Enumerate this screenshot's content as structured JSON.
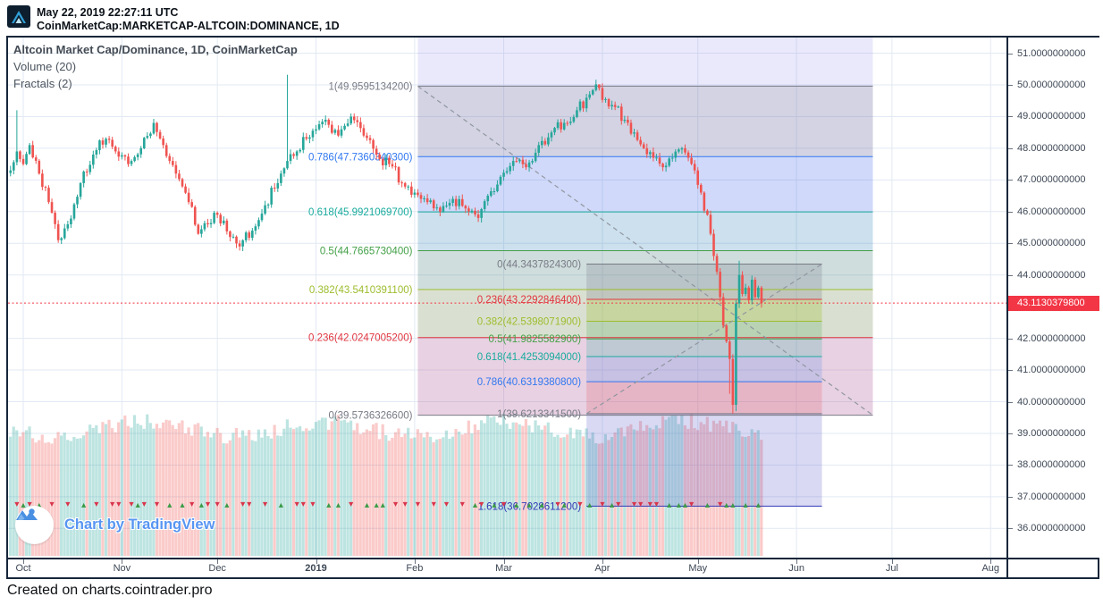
{
  "header": {
    "timestamp": "May 22, 2019 22:27:11 UTC",
    "symbol": "CoinMarketCap:MARKETCAP-ALTCOIN:DOMINANCE, 1D"
  },
  "legend": {
    "title": "Altcoin Market Cap/Dominance, 1D, CoinMarketCap",
    "volume": "Volume (20)",
    "fractals": "Fractals (2)"
  },
  "watermark": {
    "label": "Chart by TradingView"
  },
  "footer": {
    "credit": "Created on charts.cointrader.pro"
  },
  "price_axis": {
    "labels": [
      "51.0000000000",
      "50.0000000000",
      "49.0000000000",
      "48.0000000000",
      "47.0000000000",
      "46.0000000000",
      "45.0000000000",
      "44.0000000000",
      "42.0000000000",
      "41.0000000000",
      "40.0000000000",
      "39.0000000000",
      "38.0000000000",
      "37.0000000000",
      "36.0000000000"
    ],
    "badge": "43.1130379800",
    "badge_value": 43.11303798,
    "badge_color": "#f23645"
  },
  "time_axis": {
    "items": [
      {
        "label": "Oct",
        "d": 0,
        "bold": false
      },
      {
        "label": "Nov",
        "d": 31,
        "bold": false
      },
      {
        "label": "Dec",
        "d": 61,
        "bold": false
      },
      {
        "label": "2019",
        "d": 92,
        "bold": true
      },
      {
        "label": "Feb",
        "d": 123,
        "bold": false
      },
      {
        "label": "Mar",
        "d": 151,
        "bold": false
      },
      {
        "label": "Apr",
        "d": 182,
        "bold": false
      },
      {
        "label": "May",
        "d": 212,
        "bold": false
      },
      {
        "label": "Jun",
        "d": 243,
        "bold": false
      },
      {
        "label": "Jul",
        "d": 273,
        "bold": false
      },
      {
        "label": "Aug",
        "d": 304,
        "bold": false
      }
    ]
  },
  "chart_data": {
    "type": "candlestick",
    "title": "Altcoin Market Cap/Dominance",
    "interval": "1D",
    "source": "CoinMarketCap",
    "ylim": [
      35.4,
      51.6
    ],
    "grid": true,
    "last_price": 43.11303798,
    "up_color": "#26a69a",
    "down_color": "#ef5350",
    "vol_up_color": "rgba(38,166,154,0.30)",
    "vol_down_color": "rgba(239,83,80,0.30)",
    "highlight_band": {
      "from_d": 124,
      "to_d": 267,
      "color": "rgba(108,96,228,0.14)"
    },
    "anchors": [
      [
        -4,
        47.3
      ],
      [
        -2,
        47.9
      ],
      [
        0,
        47.5
      ],
      [
        2,
        48.1
      ],
      [
        5,
        47.2
      ],
      [
        8,
        46.3
      ],
      [
        11,
        45.1
      ],
      [
        14,
        45.6
      ],
      [
        18,
        46.9
      ],
      [
        22,
        47.8
      ],
      [
        26,
        48.3
      ],
      [
        29,
        47.9
      ],
      [
        33,
        47.5
      ],
      [
        37,
        48.0
      ],
      [
        41,
        48.8
      ],
      [
        44,
        48.1
      ],
      [
        48,
        47.2
      ],
      [
        52,
        46.3
      ],
      [
        55,
        45.3
      ],
      [
        58,
        45.6
      ],
      [
        61,
        45.9
      ],
      [
        65,
        45.2
      ],
      [
        68,
        44.9
      ],
      [
        72,
        45.4
      ],
      [
        76,
        46.2
      ],
      [
        80,
        46.9
      ],
      [
        83,
        47.6
      ],
      [
        86,
        47.9
      ],
      [
        89,
        48.3
      ],
      [
        92,
        48.6
      ],
      [
        95,
        48.9
      ],
      [
        99,
        48.4
      ],
      [
        103,
        49.0
      ],
      [
        107,
        48.4
      ],
      [
        111,
        47.8
      ],
      [
        115,
        47.5
      ],
      [
        119,
        46.9
      ],
      [
        123,
        46.6
      ],
      [
        127,
        46.3
      ],
      [
        131,
        46.0
      ],
      [
        135,
        46.4
      ],
      [
        139,
        46.1
      ],
      [
        143,
        45.8
      ],
      [
        146,
        46.5
      ],
      [
        150,
        47.1
      ],
      [
        154,
        47.6
      ],
      [
        158,
        47.4
      ],
      [
        162,
        48.1
      ],
      [
        166,
        48.5
      ],
      [
        170,
        48.8
      ],
      [
        174,
        49.2
      ],
      [
        178,
        49.7
      ],
      [
        181,
        49.9
      ],
      [
        183,
        49.55
      ],
      [
        186,
        49.3
      ],
      [
        189,
        48.9
      ],
      [
        192,
        48.5
      ],
      [
        195,
        48.0
      ],
      [
        198,
        47.7
      ],
      [
        201,
        47.4
      ],
      [
        204,
        47.7
      ],
      [
        207,
        48.0
      ],
      [
        209,
        47.7
      ],
      [
        211,
        47.3
      ],
      [
        213,
        46.6
      ],
      [
        215,
        45.9
      ],
      [
        216,
        45.3
      ],
      [
        217,
        44.6
      ],
      [
        218,
        44.1
      ],
      [
        219,
        43.3
      ],
      [
        220,
        42.4
      ],
      [
        221,
        41.9
      ],
      [
        222,
        41.35
      ],
      [
        223,
        39.9
      ],
      [
        224,
        43.1
      ],
      [
        225,
        44.0
      ],
      [
        226,
        43.4
      ],
      [
        227,
        43.6
      ],
      [
        228,
        43.2
      ],
      [
        229,
        43.85
      ],
      [
        230,
        43.3
      ],
      [
        231,
        43.6
      ],
      [
        232,
        43.113
      ]
    ],
    "spikes": [
      {
        "d": -2,
        "high": 49.2
      },
      {
        "d": 83,
        "high": 50.32
      },
      {
        "d": 181,
        "high": 49.959
      },
      {
        "d": 222,
        "low": 40.25
      },
      {
        "d": 223,
        "low": 39.6213
      },
      {
        "d": 224,
        "low": 39.7
      },
      {
        "d": 225,
        "high": 44.45
      }
    ],
    "fib_retracements": [
      {
        "name": "fib-1",
        "from_d": 124,
        "to_d": 267,
        "trendline": {
          "p1": 49.95951342,
          "p2": 39.57363266
        },
        "levels": [
          {
            "ratio": "1",
            "value": 49.95951342,
            "label": "1(49.9595134200)",
            "color": "gray"
          },
          {
            "ratio": "0.786",
            "value": 47.73603403,
            "label": "0.786(47.7360340300)",
            "color": "blue"
          },
          {
            "ratio": "0.618",
            "value": 45.99210697,
            "label": "0.618(45.9921069700)",
            "color": "teal"
          },
          {
            "ratio": "0.5",
            "value": 44.76657304,
            "label": "0.5(44.7665730400)",
            "color": "green"
          },
          {
            "ratio": "0.382",
            "value": 43.54103911,
            "label": "0.382(43.5410391100)",
            "color": "yellow"
          },
          {
            "ratio": "0.236",
            "value": 42.02470052,
            "label": "0.236(42.0247005200)",
            "color": "red"
          },
          {
            "ratio": "0",
            "value": 39.57363266,
            "label": "0(39.5736326600)",
            "color": "gray"
          }
        ],
        "zone_fills": [
          "rgba(120,123,134,0.20)",
          "rgba(49,120,240,0.14)",
          "rgba(24,171,157,0.14)",
          "rgba(67,160,71,0.16)",
          "rgba(157,189,45,0.20)",
          "rgba(224,53,64,0.13)"
        ]
      },
      {
        "name": "fib-2",
        "from_d": 177,
        "to_d": 251,
        "trendline": {
          "p1": 39.62133415,
          "p2": 44.34378243
        },
        "levels": [
          {
            "ratio": "0",
            "value": 44.34378243,
            "label": "0(44.3437824300)",
            "color": "gray"
          },
          {
            "ratio": "0.236",
            "value": 43.22928464,
            "label": "0.236(43.2292846400)",
            "color": "red"
          },
          {
            "ratio": "0.382",
            "value": 42.53980719,
            "label": "0.382(42.5398071900)",
            "color": "yellow"
          },
          {
            "ratio": "0.5",
            "value": 41.98255829,
            "label": "0.5(41.9825582900)",
            "color": "green"
          },
          {
            "ratio": "0.618",
            "value": 41.4253094,
            "label": "0.618(41.4253094000)",
            "color": "teal"
          },
          {
            "ratio": "0.786",
            "value": 40.63193808,
            "label": "0.786(40.6319380800)",
            "color": "blue"
          },
          {
            "ratio": "1",
            "value": 39.62133415,
            "label": "1(39.6213341500)",
            "color": "gray"
          },
          {
            "ratio": "1.618",
            "value": 36.70286112,
            "label": "1.618(36.7028611200)",
            "color": "navy"
          }
        ],
        "zone_fills": [
          "rgba(120,123,134,0.26)",
          "rgba(157,189,45,0.30)",
          "rgba(67,160,71,0.22)",
          "rgba(24,171,157,0.20)",
          "rgba(49,120,240,0.18)",
          "rgba(224,53,64,0.18)",
          "rgba(83,80,202,0.22)"
        ]
      }
    ],
    "level_colors": {
      "gray": "#787b86",
      "blue": "#3178f0",
      "teal": "#18ab9d",
      "green": "#43a047",
      "yellow": "#9dbd2d",
      "red": "#e03540",
      "navy": "#3339b5"
    },
    "fractal_colors": {
      "up": "#3a9a46",
      "down": "#d9344a"
    },
    "trendline_style": {
      "color": "#9096a0",
      "dash": "5,4"
    },
    "price_line_color": "#f23645",
    "grid_color": "#e2e9f3"
  }
}
